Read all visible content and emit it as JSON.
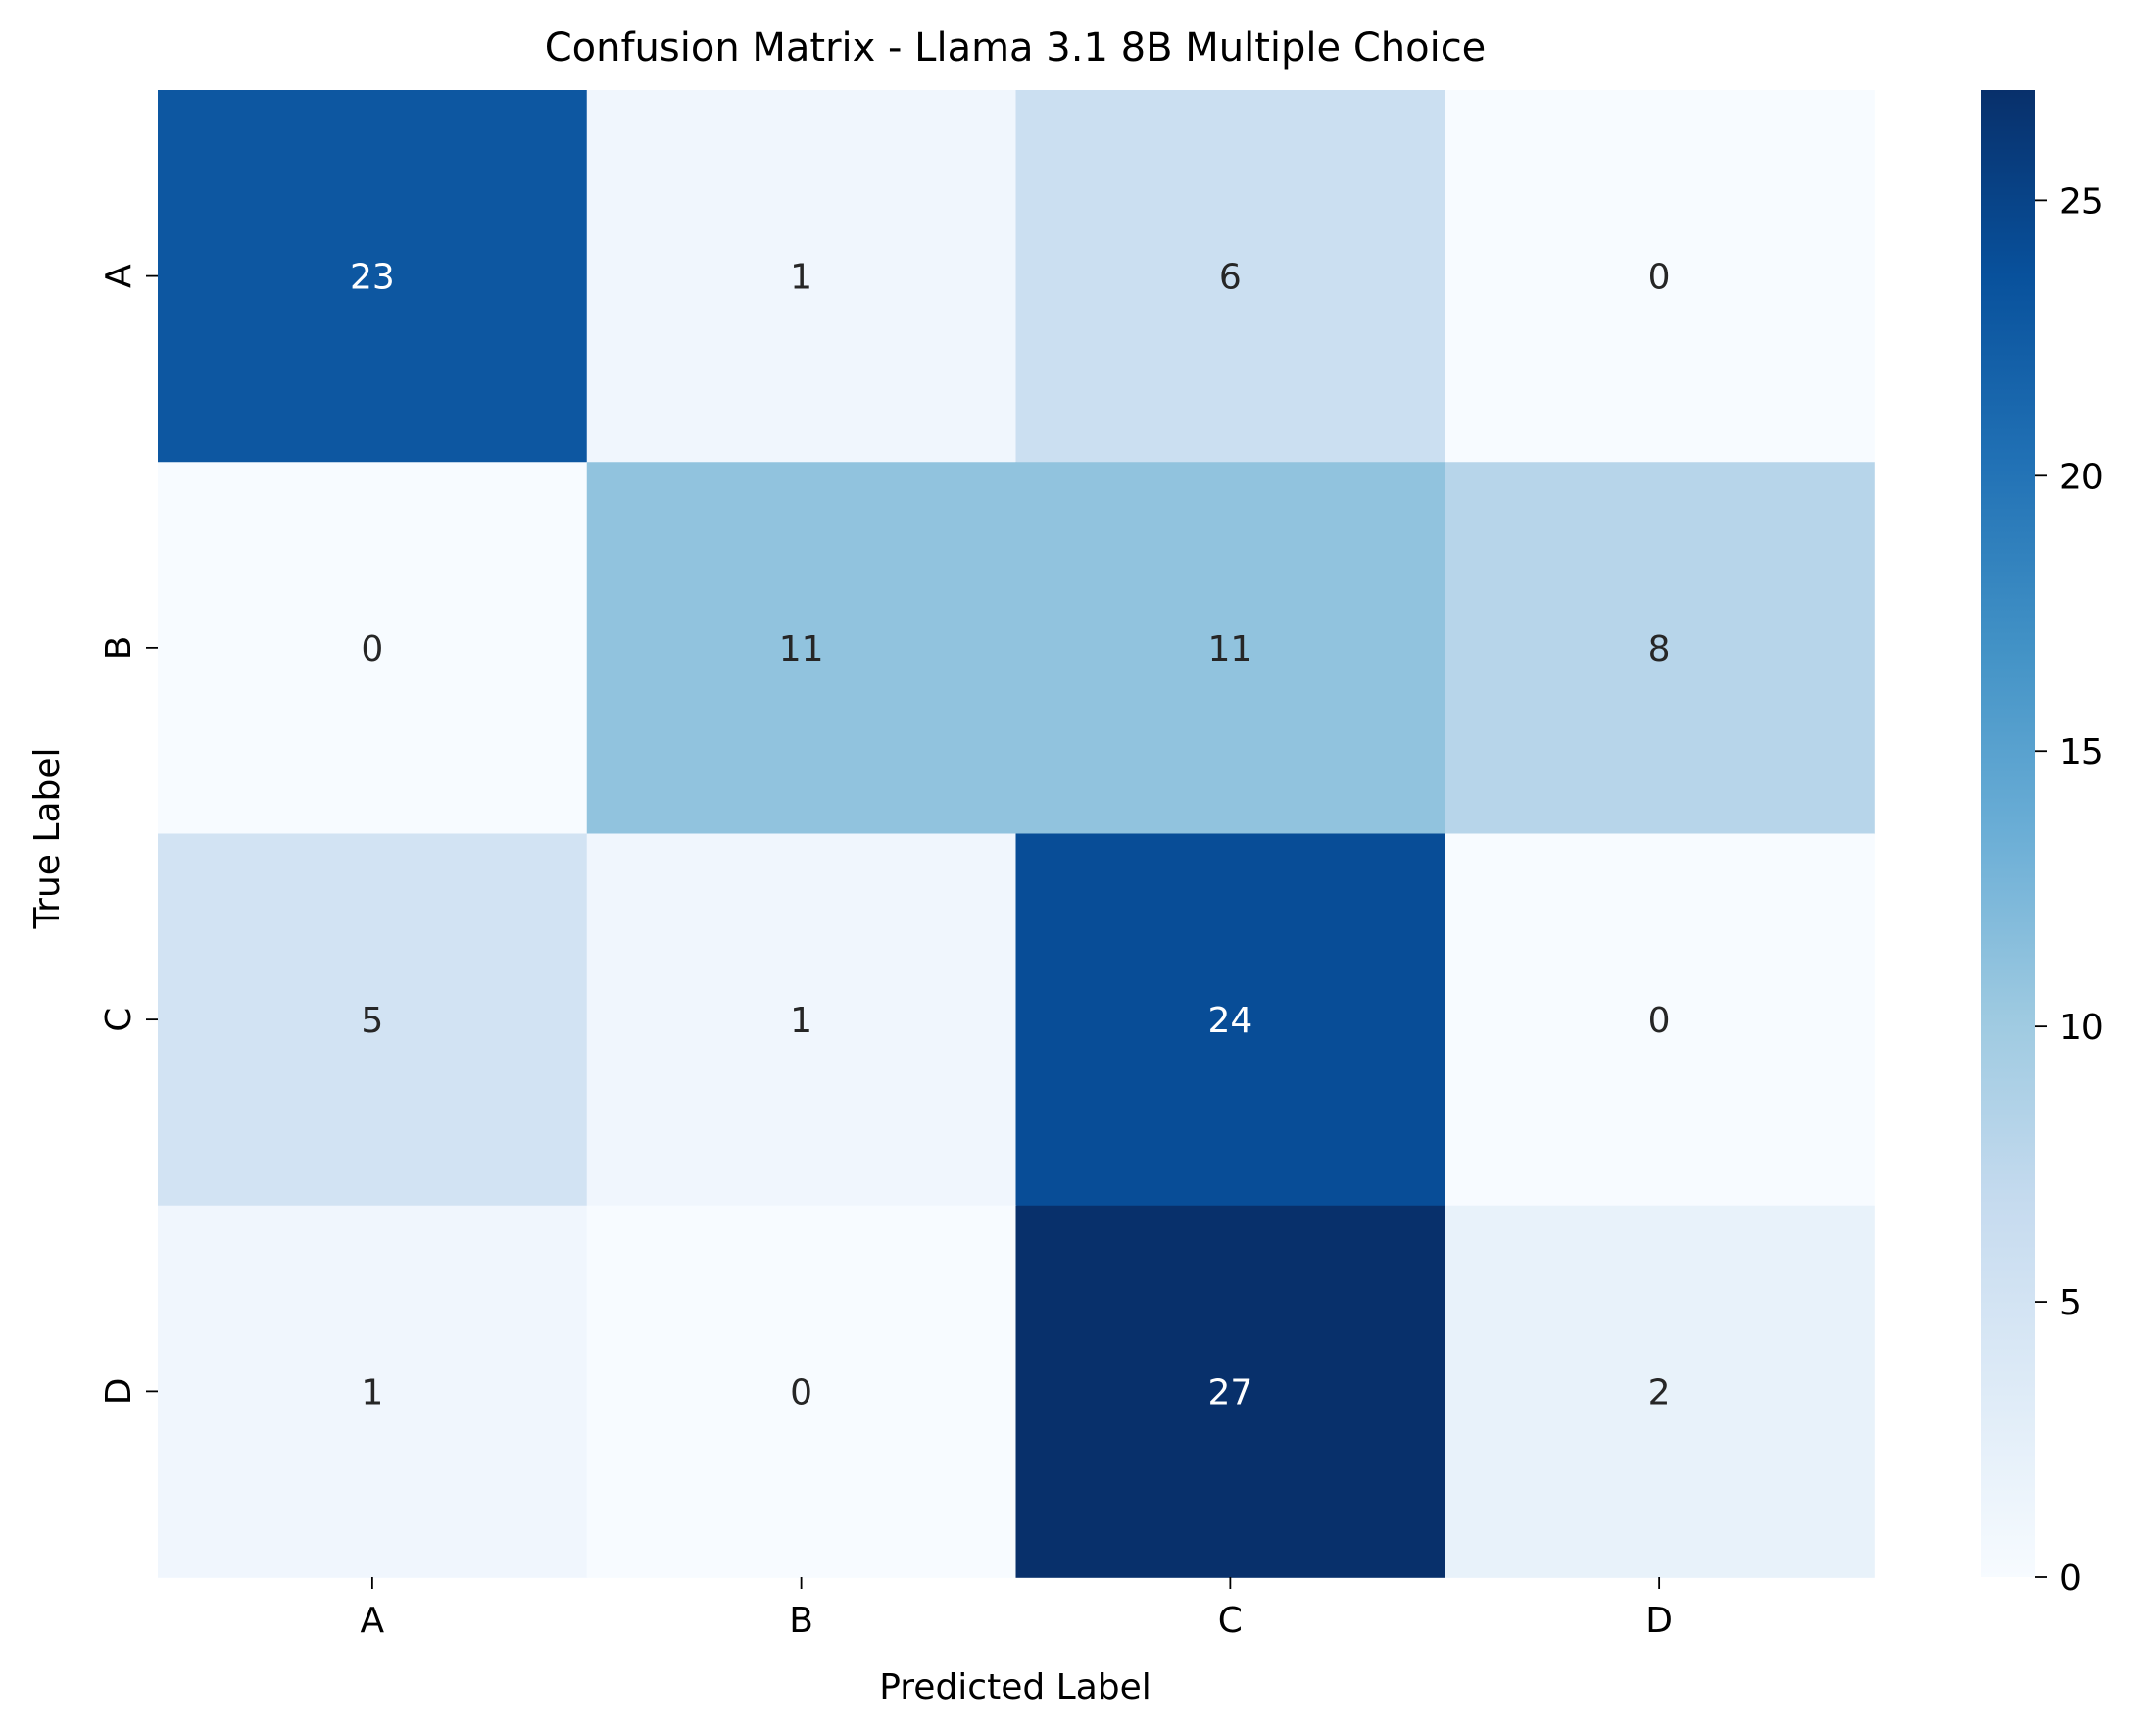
{
  "chart_data": {
    "type": "heatmap",
    "title": "Confusion Matrix - Llama 3.1 8B Multiple Choice",
    "xlabel": "Predicted Label",
    "ylabel": "True Label",
    "x_categories": [
      "A",
      "B",
      "C",
      "D"
    ],
    "y_categories": [
      "A",
      "B",
      "C",
      "D"
    ],
    "values": [
      [
        23,
        1,
        6,
        0
      ],
      [
        0,
        11,
        11,
        8
      ],
      [
        5,
        1,
        24,
        0
      ],
      [
        1,
        0,
        27,
        2
      ]
    ],
    "colorbar": {
      "min": 0,
      "max": 27,
      "ticks": [
        0,
        5,
        10,
        15,
        20,
        25
      ]
    },
    "colormap": "Blues",
    "annotation_colors": {
      "light": "#ffffff",
      "dark": "#262626"
    },
    "grid": false
  }
}
